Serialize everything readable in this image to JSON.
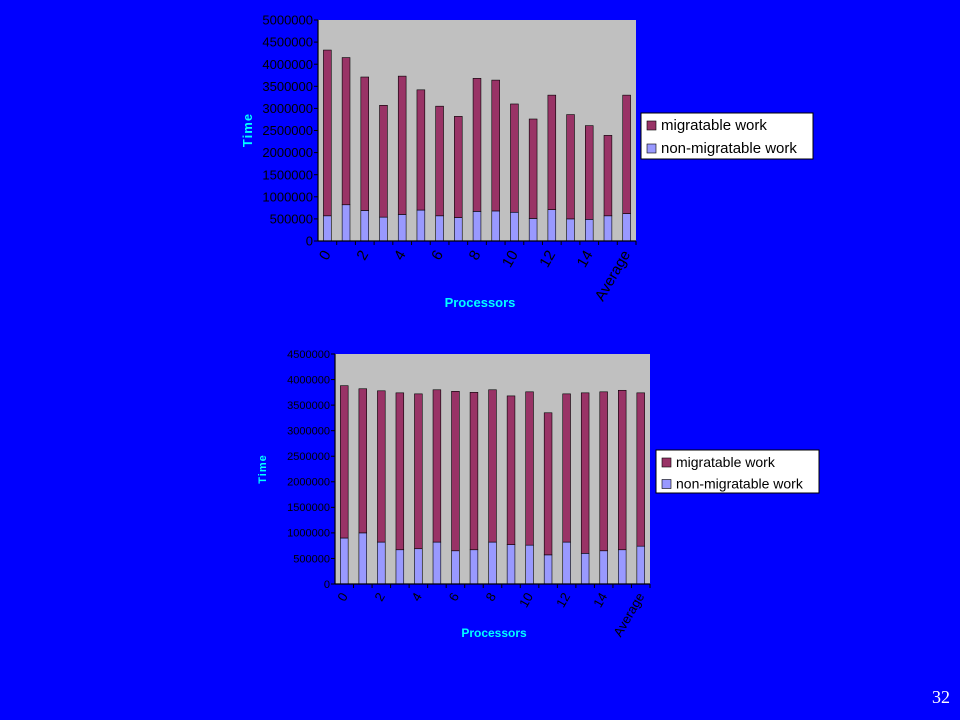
{
  "slide": {
    "page_number": "32",
    "background": "#0000ff"
  },
  "colors": {
    "plot_bg": "#c0c0c0",
    "migratable": "#993366",
    "non_migratable": "#9999ff",
    "axis_text": "#00ffff"
  },
  "chart_data": [
    {
      "type": "bar",
      "stacked": true,
      "title": "",
      "xlabel": "Processors",
      "ylabel": "Time",
      "ylim": [
        0,
        5000000
      ],
      "yticks": [
        0,
        500000,
        1000000,
        1500000,
        2000000,
        2500000,
        3000000,
        3500000,
        4000000,
        4500000,
        5000000
      ],
      "ytick_labels": [
        "0",
        "500000",
        "1000000",
        "1500000",
        "2000000",
        "2500000",
        "3000000",
        "3500000",
        "4000000",
        "4500000",
        "5000000"
      ],
      "categories": [
        "0",
        "1",
        "2",
        "3",
        "4",
        "5",
        "6",
        "7",
        "8",
        "9",
        "10",
        "11",
        "12",
        "13",
        "14",
        "15",
        "Average"
      ],
      "x_tick_labels": [
        "0",
        "",
        "2",
        "",
        "4",
        "",
        "6",
        "",
        "8",
        "",
        "10",
        "",
        "12",
        "",
        "14",
        "",
        "Average"
      ],
      "legend_position": "right",
      "series": [
        {
          "name": "non-migratable work",
          "color": "#9999ff",
          "values": [
            570000,
            820000,
            690000,
            540000,
            600000,
            700000,
            570000,
            530000,
            670000,
            680000,
            650000,
            510000,
            710000,
            500000,
            490000,
            570000,
            620000
          ]
        },
        {
          "name": "migratable work",
          "color": "#993366",
          "values": [
            3750000,
            3330000,
            3020000,
            2530000,
            3130000,
            2720000,
            2480000,
            2290000,
            3010000,
            2960000,
            2450000,
            2250000,
            2590000,
            2360000,
            2120000,
            1820000,
            2680000
          ]
        }
      ]
    },
    {
      "type": "bar",
      "stacked": true,
      "title": "",
      "xlabel": "Processors",
      "ylabel": "Time",
      "ylim": [
        0,
        4500000
      ],
      "yticks": [
        0,
        500000,
        1000000,
        1500000,
        2000000,
        2500000,
        3000000,
        3500000,
        4000000,
        4500000
      ],
      "ytick_labels": [
        "0",
        "500000",
        "1000000",
        "1500000",
        "2000000",
        "2500000",
        "3000000",
        "3500000",
        "4000000",
        "4500000"
      ],
      "categories": [
        "0",
        "1",
        "2",
        "3",
        "4",
        "5",
        "6",
        "7",
        "8",
        "9",
        "10",
        "11",
        "12",
        "13",
        "14",
        "15",
        "Average"
      ],
      "x_tick_labels": [
        "0",
        "",
        "2",
        "",
        "4",
        "",
        "6",
        "",
        "8",
        "",
        "10",
        "",
        "12",
        "",
        "14",
        "",
        "Average"
      ],
      "legend_position": "right",
      "series": [
        {
          "name": "non-migratable work",
          "color": "#9999ff",
          "values": [
            900000,
            1000000,
            820000,
            670000,
            690000,
            820000,
            650000,
            670000,
            820000,
            770000,
            760000,
            570000,
            820000,
            600000,
            650000,
            670000,
            740000
          ]
        },
        {
          "name": "migratable work",
          "color": "#993366",
          "values": [
            2980000,
            2820000,
            2960000,
            3070000,
            3030000,
            2980000,
            3120000,
            3080000,
            2980000,
            2910000,
            3000000,
            2780000,
            2900000,
            3140000,
            3110000,
            3120000,
            3000000
          ]
        }
      ]
    }
  ]
}
